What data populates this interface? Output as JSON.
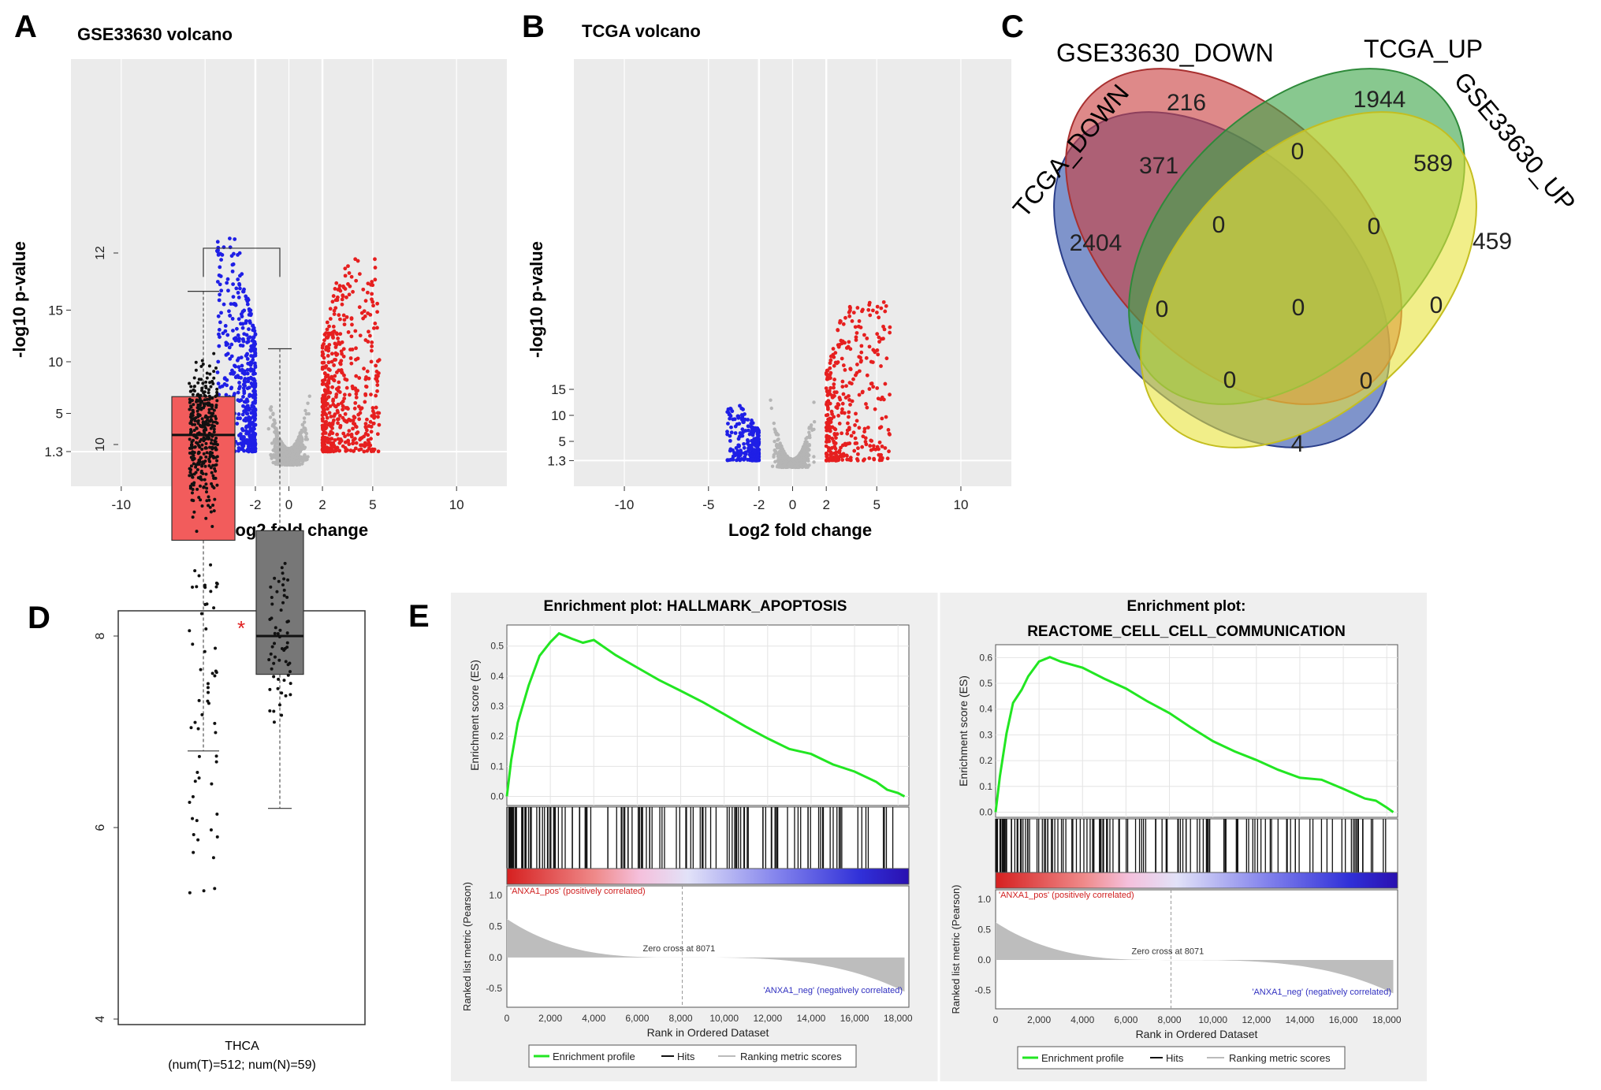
{
  "panels": {
    "A": {
      "letter": "A",
      "title": "GSE33630 volcano",
      "xlabel": "Log2  fold change",
      "ylabel": "-log10  p-value",
      "xticks": [
        "-10",
        "-5",
        "-2",
        "0",
        "2",
        "5",
        "10"
      ],
      "yticks": [
        "1.3",
        "5",
        "10",
        "15"
      ]
    },
    "B": {
      "letter": "B",
      "title": "TCGA volcano",
      "xlabel": "Log2  fold change",
      "ylabel": "-log10  p-value",
      "xticks": [
        "-10",
        "-5",
        "-2",
        "0",
        "2",
        "5",
        "10"
      ],
      "yticks": [
        "1.3",
        "5",
        "10",
        "15"
      ]
    },
    "C": {
      "letter": "C"
    },
    "D": {
      "letter": "D",
      "category": "THCA",
      "subtitle": "(num(T)=512; num(N)=59)",
      "star": "*",
      "yticks": [
        "4",
        "6",
        "8",
        "10",
        "12"
      ]
    },
    "E": {
      "letter": "E",
      "plot1_title": "Enrichment plot: HALLMARK_APOPTOSIS",
      "plot2_title_line1": "Enrichment plot:",
      "plot2_title_line2": "REACTOME_CELL_CELL_COMMUNICATION",
      "es_label": "Enrichment score (ES)",
      "metric_label": "Ranked list metric (Pearson)",
      "xlabel": "Rank in Ordered Dataset",
      "pos_label": "'ANXA1_pos' (positively correlated)",
      "neg_label": "'ANXA1_neg' (negatively correlated)",
      "zero_cross": "Zero cross at 8071",
      "xticks": [
        "0",
        "2,000",
        "4,000",
        "6,000",
        "8,000",
        "10,000",
        "12,000",
        "14,000",
        "16,000",
        "18,000"
      ],
      "metric_ticks": [
        "1.0",
        "0.5",
        "0.0",
        "-0.5"
      ],
      "legend": [
        "Enrichment profile",
        "Hits",
        "Ranking metric scores"
      ]
    }
  },
  "colors": {
    "down": "#1f1fe6",
    "up": "#e61f1f",
    "ns": "#b5b5b5",
    "es_line": "#22e622",
    "box_tumor": "#f25c5c",
    "box_normal": "#777777"
  },
  "chart_data": [
    {
      "type": "scatter",
      "panel": "A",
      "title": "GSE33630 volcano",
      "xlabel": "Log2  fold change",
      "ylabel": "-log10  p-value",
      "xlim": [
        -13,
        13
      ],
      "thresholds": {
        "logfc": 2,
        "p": 1.3
      },
      "series": [
        {
          "name": "down",
          "max_y": 22,
          "x_range": [
            -4.2,
            -2
          ]
        },
        {
          "name": "up",
          "max_y": 20,
          "x_range": [
            2,
            5.3
          ]
        }
      ]
    },
    {
      "type": "scatter",
      "panel": "B",
      "title": "TCGA volcano",
      "xlabel": "Log2  fold change",
      "ylabel": "-log10  p-value",
      "xlim": [
        -13,
        13
      ],
      "thresholds": {
        "logfc": 2,
        "p": 1.3
      },
      "series": [
        {
          "name": "down",
          "max_y": 10,
          "x_range": [
            -4,
            -2
          ]
        },
        {
          "name": "up",
          "max_y": 30,
          "x_range": [
            2,
            6
          ]
        }
      ]
    },
    {
      "type": "venn",
      "panel": "C",
      "sets": [
        "GSE33630_DOWN",
        "TCGA_UP",
        "TCGA_DOWN",
        "GSE33630_UP"
      ],
      "regions": [
        {
          "sets": [
            "TCGA_DOWN"
          ],
          "value": "2404"
        },
        {
          "sets": [
            "GSE33630_DOWN"
          ],
          "value": "216"
        },
        {
          "sets": [
            "TCGA_UP"
          ],
          "value": "1944"
        },
        {
          "sets": [
            "GSE33630_UP"
          ],
          "value": "459"
        },
        {
          "sets": [
            "TCGA_DOWN",
            "GSE33630_DOWN"
          ],
          "value": "371"
        },
        {
          "sets": [
            "GSE33630_DOWN",
            "TCGA_UP"
          ],
          "value": "0"
        },
        {
          "sets": [
            "TCGA_UP",
            "GSE33630_UP"
          ],
          "value": "589"
        },
        {
          "sets": [
            "TCGA_DOWN",
            "GSE33630_DOWN",
            "TCGA_UP"
          ],
          "value": "0"
        },
        {
          "sets": [
            "GSE33630_DOWN",
            "TCGA_UP",
            "GSE33630_UP"
          ],
          "value": "0"
        },
        {
          "sets": [
            "TCGA_DOWN",
            "TCGA_UP"
          ],
          "value": "0"
        },
        {
          "sets": [
            "GSE33630_DOWN",
            "GSE33630_UP"
          ],
          "value": "0"
        },
        {
          "sets": [
            "TCGA_DOWN",
            "GSE33630_DOWN",
            "TCGA_UP",
            "GSE33630_UP"
          ],
          "value": "0"
        },
        {
          "sets": [
            "TCGA_DOWN",
            "TCGA_UP",
            "GSE33630_UP"
          ],
          "value": "0"
        },
        {
          "sets": [
            "TCGA_DOWN",
            "GSE33630_DOWN",
            "GSE33630_UP"
          ],
          "value": "0"
        },
        {
          "sets": [
            "TCGA_DOWN",
            "GSE33630_UP"
          ],
          "value": "4"
        }
      ]
    },
    {
      "type": "box",
      "panel": "D",
      "category": "THCA",
      "ylim": [
        4,
        12.5
      ],
      "series": [
        {
          "name": "T",
          "n": 512,
          "whisker_low": 6.8,
          "q1": 9.0,
          "median": 10.1,
          "q3": 10.5,
          "whisker_high": 11.6
        },
        {
          "name": "N",
          "n": 59,
          "whisker_low": 6.2,
          "q1": 7.6,
          "median": 8.0,
          "q3": 9.1,
          "whisker_high": 11.0
        }
      ]
    },
    {
      "type": "line",
      "panel": "E1",
      "title": "Enrichment plot: HALLMARK_APOPTOSIS",
      "ylabel": "Enrichment score (ES)",
      "xlabel": "Rank in Ordered Dataset",
      "ylim": [
        -0.03,
        0.57
      ],
      "xlim": [
        0,
        18500
      ],
      "x": [
        0,
        200,
        500,
        1000,
        1500,
        2000,
        2400,
        3000,
        3500,
        4000,
        5000,
        6000,
        7000,
        8000,
        9000,
        10000,
        11000,
        12000,
        13000,
        14000,
        15000,
        16000,
        17000,
        17500,
        18000,
        18300
      ],
      "y": [
        0.0,
        0.12,
        0.25,
        0.37,
        0.47,
        0.51,
        0.54,
        0.53,
        0.51,
        0.52,
        0.47,
        0.43,
        0.39,
        0.35,
        0.31,
        0.27,
        0.23,
        0.19,
        0.16,
        0.14,
        0.11,
        0.08,
        0.05,
        0.02,
        0.01,
        0.0
      ]
    },
    {
      "type": "line",
      "panel": "E2",
      "title": "Enrichment plot: REACTOME_CELL_CELL_COMMUNICATION",
      "ylabel": "Enrichment score (ES)",
      "xlabel": "Rank in Ordered Dataset",
      "ylim": [
        -0.02,
        0.65
      ],
      "xlim": [
        0,
        18500
      ],
      "x": [
        0,
        200,
        500,
        800,
        1200,
        1500,
        2000,
        2500,
        3000,
        4000,
        5000,
        6000,
        7000,
        8000,
        9000,
        10000,
        11000,
        12000,
        13000,
        14000,
        15000,
        16000,
        17000,
        17500,
        18000,
        18300
      ],
      "y": [
        0.0,
        0.14,
        0.3,
        0.42,
        0.47,
        0.53,
        0.58,
        0.6,
        0.59,
        0.56,
        0.52,
        0.48,
        0.43,
        0.38,
        0.33,
        0.28,
        0.24,
        0.2,
        0.16,
        0.13,
        0.12,
        0.09,
        0.05,
        0.04,
        0.02,
        0.0
      ]
    }
  ]
}
